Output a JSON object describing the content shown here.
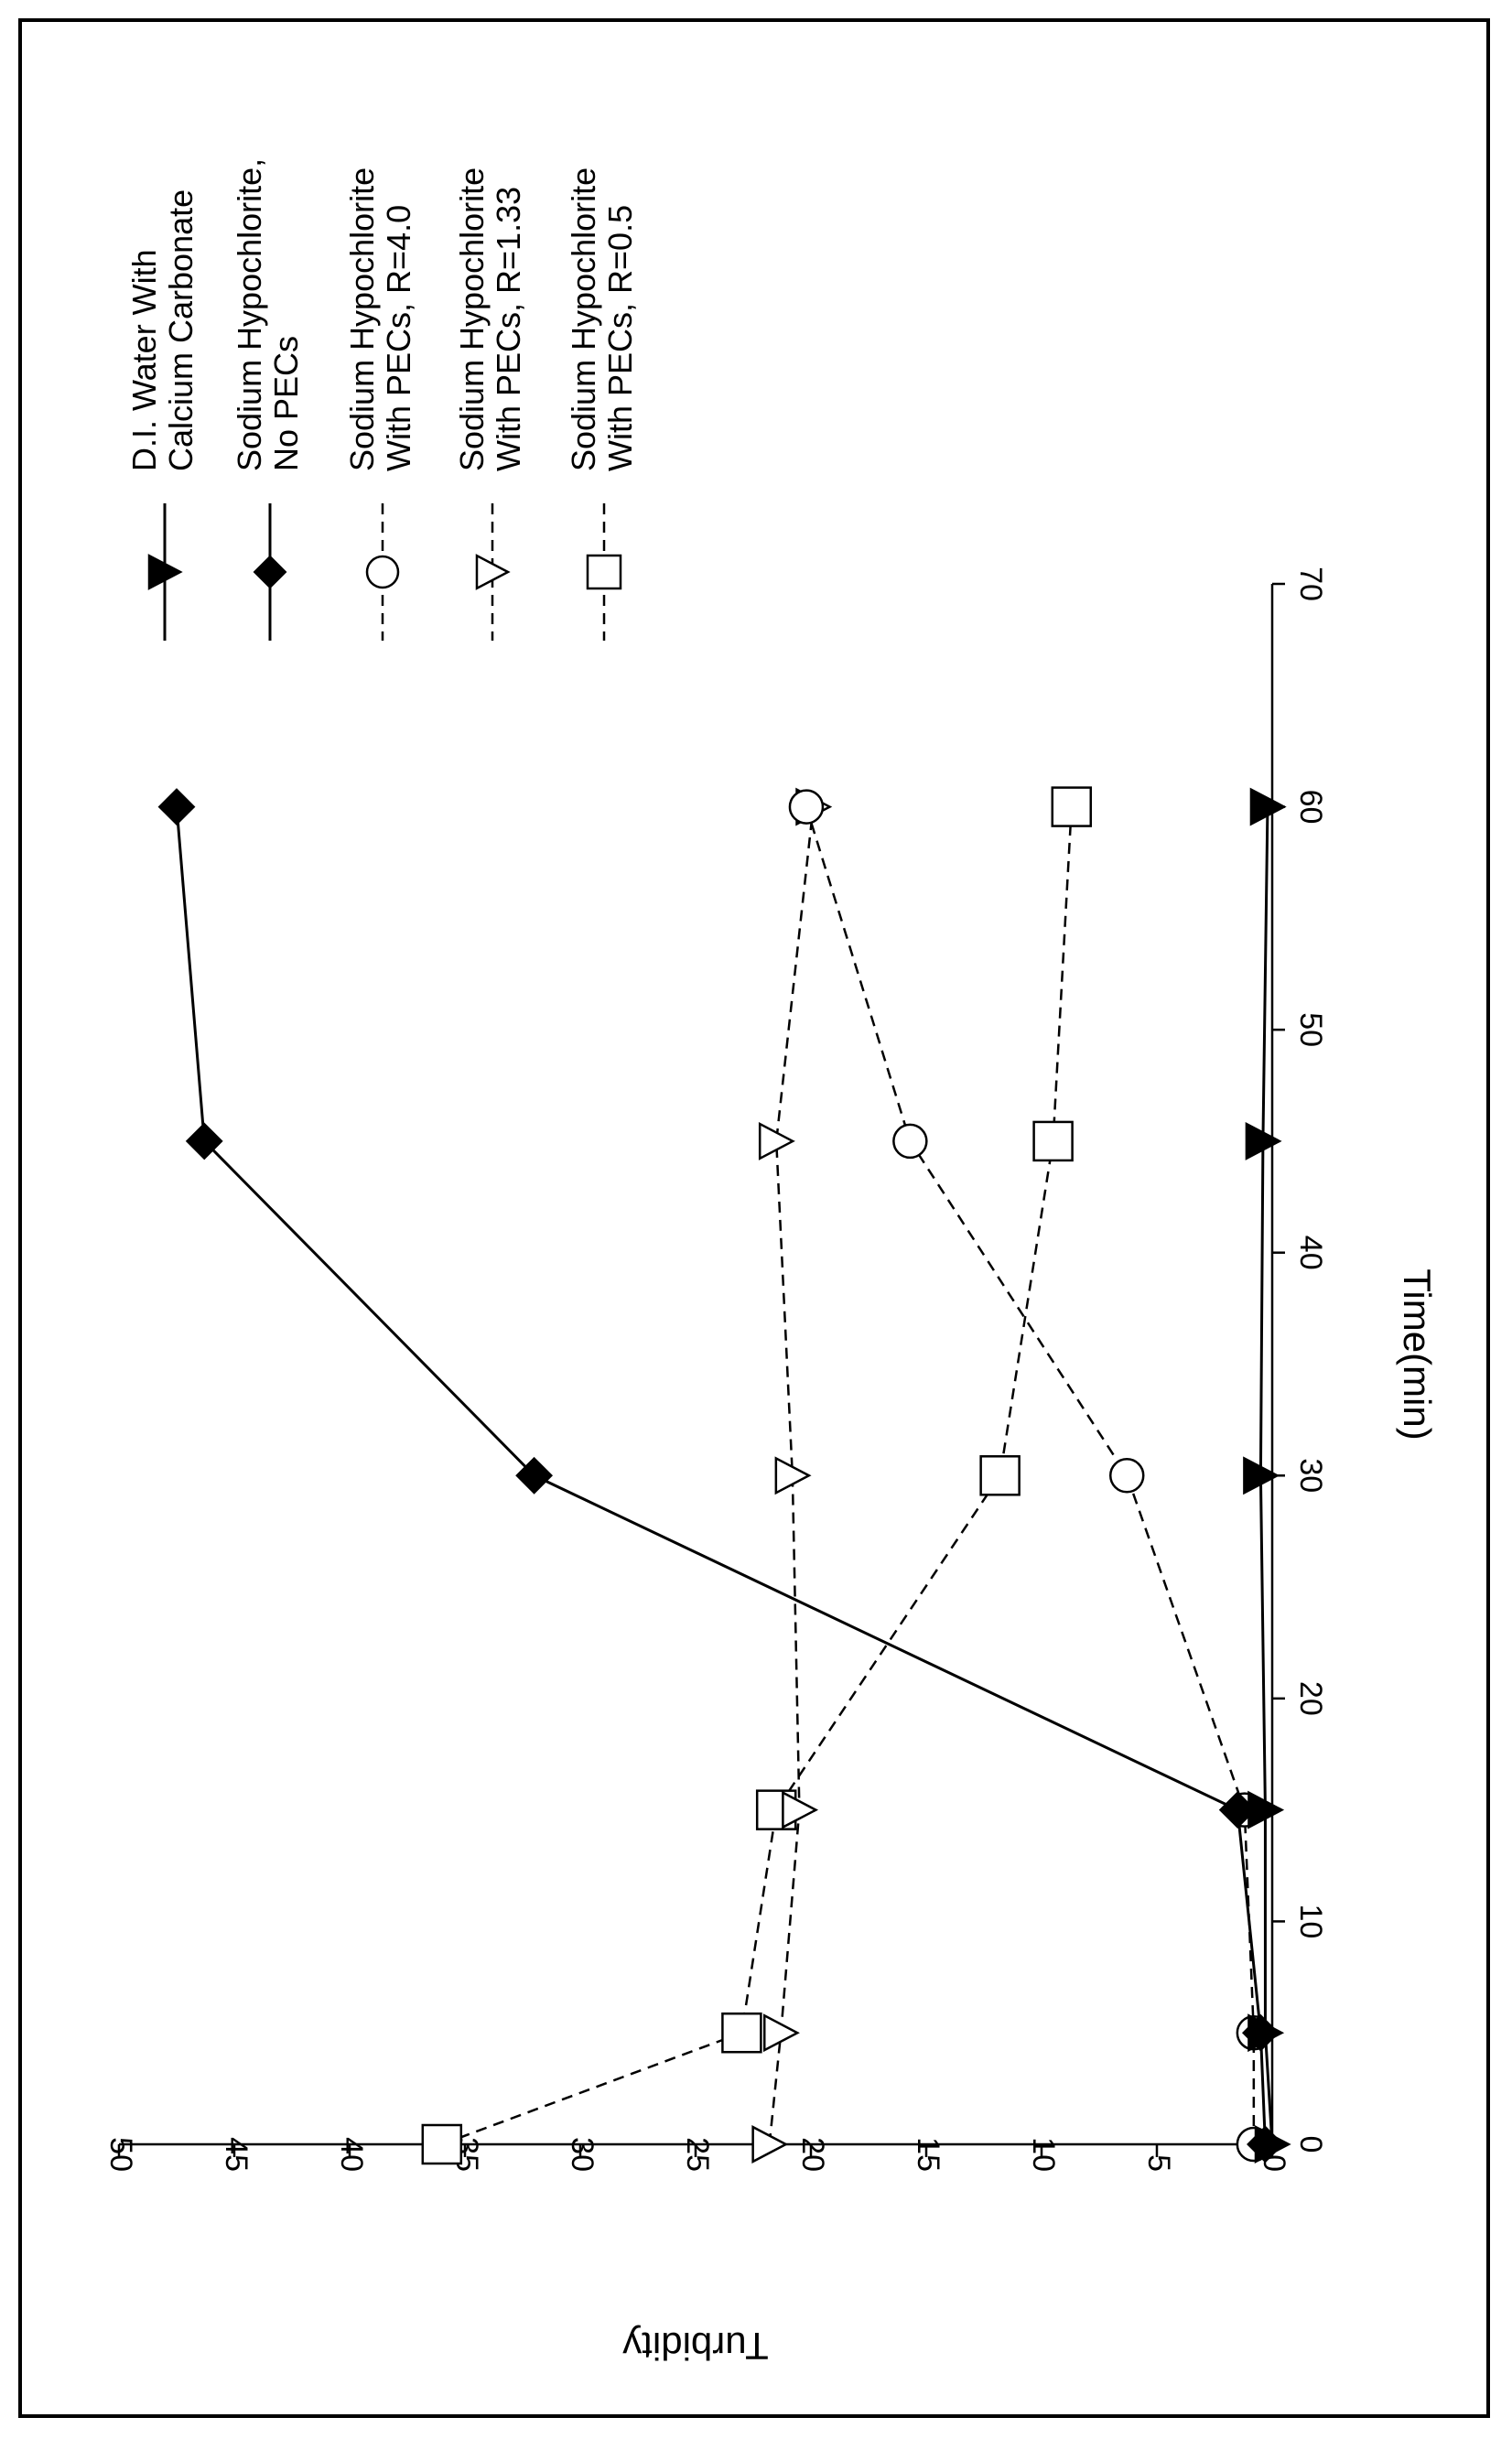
{
  "chart_data": {
    "type": "line",
    "xlabel": "Time(min)",
    "ylabel": "Turbidity",
    "xlim": [
      0,
      70
    ],
    "ylim": [
      0,
      50
    ],
    "xticks": [
      0,
      10,
      20,
      30,
      40,
      50,
      60,
      70
    ],
    "yticks": [
      0,
      5,
      10,
      15,
      20,
      25,
      30,
      35,
      40,
      45,
      50
    ],
    "grid": false,
    "orientation": "rotated 90 degrees counter-clockwise",
    "legend_position": "right",
    "series": [
      {
        "name": "D.I. Water With Calcium Carbonate",
        "marker": "filled-triangle",
        "line": "solid",
        "x": [
          0,
          5,
          15,
          30,
          45,
          60
        ],
        "y": [
          0,
          0.3,
          0.3,
          0.5,
          0.4,
          0.2
        ]
      },
      {
        "name": "Sodium Hypochlorite, No PECs",
        "marker": "filled-diamond",
        "line": "solid",
        "x": [
          0,
          5,
          15,
          30,
          45,
          60
        ],
        "y": [
          0.3,
          0.5,
          1.5,
          32,
          46.3,
          47.5
        ]
      },
      {
        "name": "Sodium Hypochlorite With PECs, R=4.0",
        "marker": "open-circle",
        "line": "dashed",
        "x": [
          0,
          5,
          15,
          30,
          45,
          60
        ],
        "y": [
          0.8,
          0.8,
          1.2,
          6.3,
          15.7,
          20.2
        ]
      },
      {
        "name": "Sodium Hypochlorite With PECs, R=1.33",
        "marker": "open-triangle",
        "line": "dashed",
        "x": [
          0,
          5,
          15,
          30,
          45,
          60
        ],
        "y": [
          21.8,
          21.3,
          20.5,
          20.8,
          21.5,
          19.9
        ]
      },
      {
        "name": "Sodium Hypochlorite With PECs, R=0.5",
        "marker": "open-square",
        "line": "dashed",
        "x": [
          0,
          5,
          15,
          30,
          45,
          60
        ],
        "y": [
          36,
          23,
          21.5,
          11.8,
          9.5,
          8.7
        ]
      }
    ]
  }
}
